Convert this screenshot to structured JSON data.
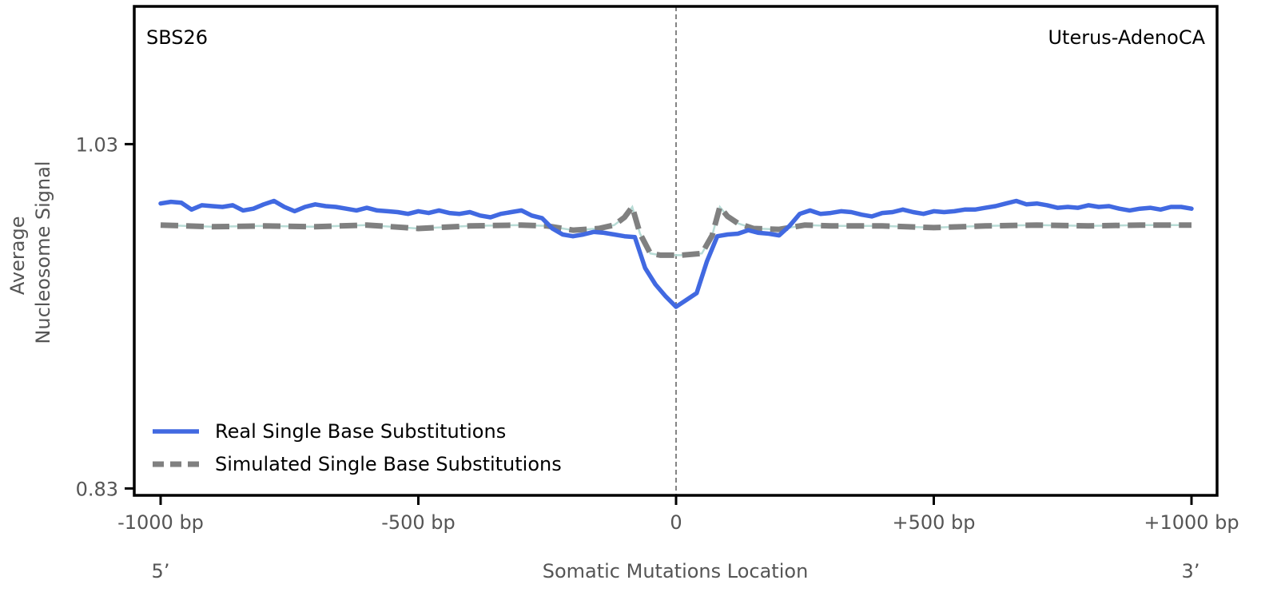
{
  "chart_data": {
    "type": "line",
    "signature_label": "SBS26",
    "cancer_type_label": "Uterus-AdenoCA",
    "ylabel_line1": "Average",
    "ylabel_line2": "Nucleosome Signal",
    "xlabel": "Somatic Mutations Location",
    "x_end_left": "5’",
    "x_end_right": "3’",
    "xlim": [
      -1000,
      1000
    ],
    "ylim": [
      0.826,
      1.11
    ],
    "x_ticks": [
      {
        "value": -1000,
        "label": "-1000 bp"
      },
      {
        "value": -500,
        "label": "-500 bp"
      },
      {
        "value": 0,
        "label": "0"
      },
      {
        "value": 500,
        "label": "+500 bp"
      },
      {
        "value": 1000,
        "label": "+1000 bp"
      }
    ],
    "y_ticks": [
      {
        "value": 1.03,
        "label": "1.03"
      },
      {
        "value": 0.83,
        "label": "0.83"
      }
    ],
    "center_line": 0,
    "legend_position": "lower-left",
    "series": [
      {
        "name": "Real Single Base Substitutions",
        "color": "#4169E1",
        "style": "solid",
        "x": [
          -1000,
          -980,
          -960,
          -940,
          -920,
          -900,
          -880,
          -860,
          -840,
          -820,
          -800,
          -780,
          -760,
          -740,
          -720,
          -700,
          -680,
          -660,
          -640,
          -620,
          -600,
          -580,
          -560,
          -540,
          -520,
          -500,
          -480,
          -460,
          -440,
          -420,
          -400,
          -380,
          -360,
          -340,
          -320,
          -300,
          -280,
          -260,
          -240,
          -220,
          -200,
          -180,
          -160,
          -140,
          -120,
          -100,
          -80,
          -60,
          -40,
          -20,
          0,
          20,
          40,
          60,
          80,
          100,
          120,
          140,
          160,
          180,
          200,
          220,
          240,
          260,
          280,
          300,
          320,
          340,
          360,
          380,
          400,
          420,
          440,
          460,
          480,
          500,
          520,
          540,
          560,
          580,
          600,
          620,
          640,
          660,
          680,
          700,
          720,
          740,
          760,
          780,
          800,
          820,
          840,
          860,
          880,
          900,
          920,
          940,
          960,
          980,
          1000
        ],
        "values": [
          0.9955,
          0.9965,
          0.996,
          0.992,
          0.9945,
          0.994,
          0.9935,
          0.9945,
          0.9915,
          0.9925,
          0.995,
          0.997,
          0.9935,
          0.991,
          0.9935,
          0.995,
          0.994,
          0.9935,
          0.9925,
          0.9915,
          0.993,
          0.9915,
          0.991,
          0.9905,
          0.9895,
          0.991,
          0.99,
          0.9915,
          0.99,
          0.9895,
          0.9905,
          0.9885,
          0.9875,
          0.9895,
          0.9905,
          0.9915,
          0.9885,
          0.987,
          0.981,
          0.9775,
          0.9765,
          0.9775,
          0.979,
          0.9785,
          0.9775,
          0.9765,
          0.976,
          0.958,
          0.9485,
          0.9415,
          0.9355,
          0.9395,
          0.9435,
          0.962,
          0.9765,
          0.9775,
          0.978,
          0.98,
          0.9785,
          0.978,
          0.977,
          0.9825,
          0.9895,
          0.9915,
          0.9895,
          0.99,
          0.991,
          0.9905,
          0.989,
          0.988,
          0.99,
          0.9905,
          0.992,
          0.9905,
          0.9895,
          0.991,
          0.9905,
          0.991,
          0.992,
          0.992,
          0.993,
          0.994,
          0.9955,
          0.997,
          0.995,
          0.9955,
          0.9945,
          0.993,
          0.9935,
          0.993,
          0.9945,
          0.9935,
          0.994,
          0.9925,
          0.9915,
          0.9925,
          0.993,
          0.992,
          0.9935,
          0.9935,
          0.9925
        ]
      },
      {
        "name": "Simulated Single Base Substitutions",
        "color": "#808080",
        "style": "dashed",
        "x": [
          -1000,
          -900,
          -800,
          -700,
          -600,
          -500,
          -400,
          -300,
          -250,
          -200,
          -150,
          -120,
          -100,
          -85,
          -70,
          -50,
          -30,
          -10,
          10,
          30,
          50,
          70,
          85,
          100,
          120,
          150,
          200,
          250,
          300,
          400,
          500,
          600,
          700,
          800,
          900,
          1000
        ],
        "values": [
          0.983,
          0.982,
          0.9825,
          0.982,
          0.983,
          0.981,
          0.9825,
          0.983,
          0.9825,
          0.98,
          0.981,
          0.983,
          0.9875,
          0.9935,
          0.978,
          0.9665,
          0.9655,
          0.9655,
          0.9655,
          0.966,
          0.9665,
          0.977,
          0.9935,
          0.988,
          0.984,
          0.981,
          0.9805,
          0.983,
          0.9825,
          0.9825,
          0.9815,
          0.9825,
          0.983,
          0.9825,
          0.983,
          0.983
        ]
      }
    ]
  }
}
